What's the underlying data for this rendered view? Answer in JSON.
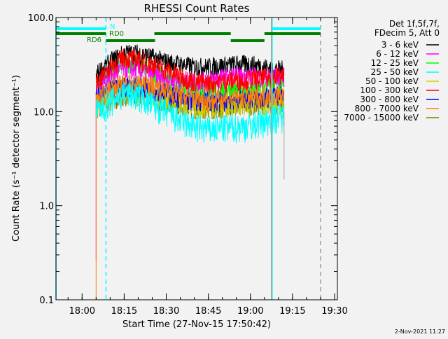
{
  "chart_data": {
    "type": "line",
    "title": "RHESSI Count Rates",
    "xlabel": "Start Time (27-Nov-15 17:50:42)",
    "ylabel": "Count Rate (s⁻¹ detector segment⁻¹)",
    "yscale": "log",
    "ylim": [
      0.1,
      100
    ],
    "xlim": [
      "17:50:42",
      "19:31:00"
    ],
    "xticks": [
      "18:00",
      "18:15",
      "18:30",
      "18:45",
      "19:00",
      "19:15",
      "19:30"
    ],
    "yticks": [
      {
        "v": 0.1,
        "label": "0.1"
      },
      {
        "v": 1,
        "label": "1.0"
      },
      {
        "v": 10,
        "label": "10.0"
      },
      {
        "v": 100,
        "label": "100.0"
      }
    ],
    "legend_header": [
      "Det 1f,5f,7f,",
      "FDecim 5, Att 0"
    ],
    "legend_placement": "right",
    "times": [
      "18:05",
      "18:10",
      "18:15",
      "18:20",
      "18:25",
      "18:30",
      "18:35",
      "18:40",
      "18:45",
      "18:50",
      "18:55",
      "19:00",
      "19:05",
      "19:10",
      "19:12"
    ],
    "series": [
      {
        "name": "3 - 6 keV",
        "color": "#000000",
        "values": [
          25,
          34,
          42,
          42,
          38,
          34,
          32,
          30,
          30,
          31,
          32,
          32,
          30,
          28,
          28
        ]
      },
      {
        "name": "6 - 12 keV",
        "color": "#ff00ff",
        "values": [
          18,
          24,
          29,
          28,
          25,
          22,
          21,
          21,
          22,
          23,
          24,
          24,
          23,
          24,
          24
        ],
        "dip": {
          "time": "18:05",
          "value": 0.27
        }
      },
      {
        "name": "12 - 25 keV",
        "color": "#00ff00",
        "values": [
          18,
          27,
          33,
          32,
          27,
          22,
          19,
          18,
          18,
          18,
          17,
          17,
          18,
          20,
          20
        ]
      },
      {
        "name": "25 - 50 keV",
        "color": "#00ffff",
        "values": [
          10,
          13,
          16,
          15,
          12,
          10,
          8,
          7,
          6.5,
          6.8,
          7,
          7.2,
          8,
          9,
          9
        ]
      },
      {
        "name": "50 - 100 keV",
        "color": "#d0d000",
        "values": [
          12,
          15,
          17,
          16,
          15,
          14,
          12,
          11,
          11,
          11,
          12,
          12,
          12,
          12,
          12
        ]
      },
      {
        "name": "100 - 300 keV",
        "color": "#ff0000",
        "values": [
          20,
          30,
          38,
          36,
          32,
          28,
          24,
          21,
          20,
          21,
          22,
          22,
          23,
          24,
          24
        ]
      },
      {
        "name": "300 - 800 keV",
        "color": "#0000ff",
        "values": [
          14,
          17,
          19,
          19,
          17,
          16,
          14,
          13,
          13,
          13,
          14,
          14,
          14,
          15,
          15
        ]
      },
      {
        "name": "800 - 7000 keV",
        "color": "#ff8000",
        "values": [
          13,
          18,
          20,
          20,
          19,
          17,
          15,
          14,
          13,
          14,
          14,
          14,
          15,
          15,
          15
        ],
        "dip": {
          "time": "18:05",
          "value": 0.1
        }
      },
      {
        "name": "7000 - 15000 keV",
        "color": "#808000",
        "values": [
          11,
          13,
          15,
          15,
          14,
          13,
          12,
          11,
          11,
          11,
          12,
          12,
          12,
          12,
          12
        ]
      }
    ],
    "gray_trace": {
      "color": "#a0a0a0",
      "drop": {
        "time": "19:12",
        "value": 1.9
      }
    },
    "annotations": {
      "vlines": [
        {
          "time": "17:50:42",
          "color": "#00ffff",
          "style": "solid"
        },
        {
          "time": "18:08:30",
          "color": "#00ffff",
          "style": "dashed"
        },
        {
          "time": "19:07:45",
          "color": "#00ffff",
          "style": "solid"
        },
        {
          "time": "19:07:30",
          "color": "#a0a0a0",
          "style": "solid"
        },
        {
          "time": "19:25:00",
          "color": "#a0a0a0",
          "style": "dashed"
        }
      ],
      "flag_bars": [
        {
          "label": "N",
          "color": "#00ffff",
          "row": 0,
          "spans": [
            [
              "17:50:42",
              "18:08:30"
            ],
            [
              "19:07:45",
              "19:25:00"
            ]
          ]
        },
        {
          "label": "RD0",
          "color": "#008000",
          "row": 1,
          "spans": [
            [
              "17:50:42",
              "18:08:30"
            ],
            [
              "18:25:45",
              "18:53:00"
            ],
            [
              "19:05:00",
              "19:25:00"
            ]
          ]
        },
        {
          "label": "RD6",
          "color": "#008000",
          "row": 2,
          "spans": [
            [
              "18:08:30",
              "18:26:00"
            ],
            [
              "18:53:00",
              "19:05:00"
            ]
          ]
        }
      ]
    }
  },
  "footer_date": "2-Nov-2021 11:27"
}
